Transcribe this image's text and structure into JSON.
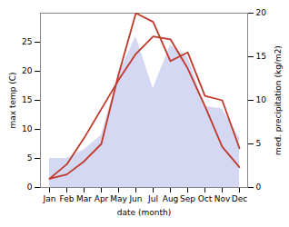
{
  "chart_data": {
    "type": "line",
    "xlabel": "date (month)",
    "ylabel": "max temp (C)",
    "y2label": "med. precipitation (kg/m2)",
    "categories": [
      "Jan",
      "Feb",
      "Mar",
      "Apr",
      "May",
      "Jun",
      "Jul",
      "Aug",
      "Sep",
      "Oct",
      "Nov",
      "Dec"
    ],
    "series": [
      {
        "type": "area",
        "color": "#b0b8e8",
        "values": [
          5.0,
          5.0,
          6.5,
          9.0,
          19.5,
          26.0,
          17.0,
          24.5,
          22.5,
          14.0,
          13.5,
          8.5
        ]
      },
      {
        "type": "line",
        "color": "#c0392b",
        "values": [
          1.5,
          4.0,
          8.5,
          13.5,
          18.5,
          23.0,
          26.0,
          25.5,
          20.5,
          14.0,
          7.0,
          3.5
        ]
      },
      {
        "type": "line",
        "color": "#c0392b",
        "axis": "y2",
        "values": [
          1.0,
          1.5,
          3.0,
          5.0,
          13.0,
          20.0,
          19.0,
          14.5,
          15.5,
          10.5,
          10.0,
          4.5
        ]
      }
    ],
    "ylim": [
      0,
      30
    ],
    "yticks": [
      0,
      5,
      10,
      15,
      20,
      25
    ],
    "y2lim": [
      0,
      20
    ],
    "y2ticks": [
      0,
      5,
      10,
      15,
      20
    ],
    "grid": false
  }
}
